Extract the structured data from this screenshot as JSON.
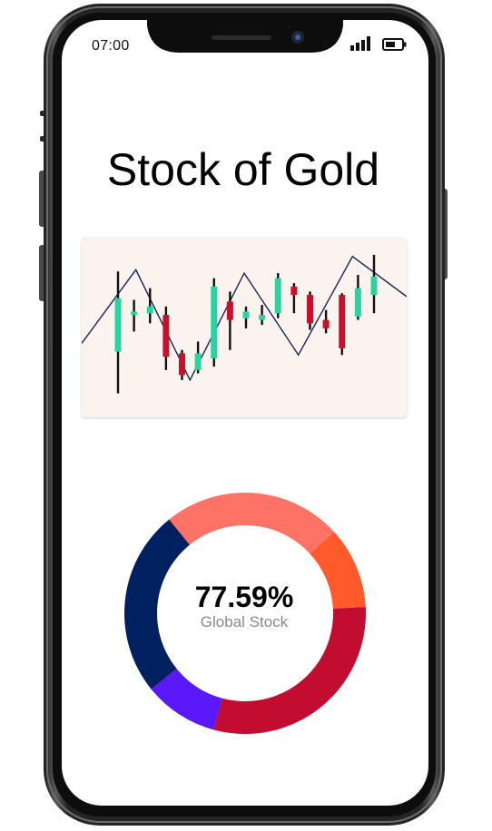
{
  "status_bar": {
    "time": "07:00",
    "signal_icon": "cellular-signal-icon",
    "battery_icon": "battery-icon"
  },
  "page": {
    "title": "Stock of Gold"
  },
  "colors": {
    "bull": "#2bd3a0",
    "bear": "#c8102e",
    "wick": "#111111",
    "trend_line": "#14245c",
    "card_bg": "#fbf4ee"
  },
  "chart_data": [
    {
      "type": "candlestick",
      "title": "",
      "candles": [
        {
          "open": 0.35,
          "close": 0.67,
          "high": 0.83,
          "low": 0.1
        },
        {
          "open": 0.57,
          "close": 0.59,
          "high": 0.66,
          "low": 0.47
        },
        {
          "open": 0.58,
          "close": 0.62,
          "high": 0.73,
          "low": 0.52
        },
        {
          "open": 0.57,
          "close": 0.32,
          "high": 0.62,
          "low": 0.24
        },
        {
          "open": 0.34,
          "close": 0.21,
          "high": 0.36,
          "low": 0.18
        },
        {
          "open": 0.24,
          "close": 0.34,
          "high": 0.41,
          "low": 0.22
        },
        {
          "open": 0.31,
          "close": 0.74,
          "high": 0.79,
          "low": 0.26
        },
        {
          "open": 0.65,
          "close": 0.54,
          "high": 0.71,
          "low": 0.36
        },
        {
          "open": 0.55,
          "close": 0.59,
          "high": 0.62,
          "low": 0.49
        },
        {
          "open": 0.54,
          "close": 0.57,
          "high": 0.63,
          "low": 0.51
        },
        {
          "open": 0.58,
          "close": 0.79,
          "high": 0.82,
          "low": 0.55
        },
        {
          "open": 0.74,
          "close": 0.69,
          "high": 0.76,
          "low": 0.58
        },
        {
          "open": 0.69,
          "close": 0.52,
          "high": 0.71,
          "low": 0.48
        },
        {
          "open": 0.54,
          "close": 0.49,
          "high": 0.6,
          "low": 0.46
        },
        {
          "open": 0.69,
          "close": 0.37,
          "high": 0.7,
          "low": 0.33
        },
        {
          "open": 0.56,
          "close": 0.73,
          "high": 0.81,
          "low": 0.54
        },
        {
          "open": 0.69,
          "close": 0.8,
          "high": 0.93,
          "low": 0.58
        }
      ],
      "trend_line": [
        0.4,
        0.84,
        0.18,
        0.82,
        0.33,
        0.92,
        0.68
      ]
    },
    {
      "type": "pie",
      "donut": true,
      "center_value": "77.59%",
      "center_label": "Global Stock",
      "slices": [
        {
          "value": 24,
          "color": "#ff7266"
        },
        {
          "value": 11,
          "color": "#ff5a2c"
        },
        {
          "value": 30,
          "color": "#c20d31"
        },
        {
          "value": 10,
          "color": "#5a17f7"
        },
        {
          "value": 25,
          "color": "#00205f"
        }
      ],
      "start_angle_deg": -39
    }
  ]
}
